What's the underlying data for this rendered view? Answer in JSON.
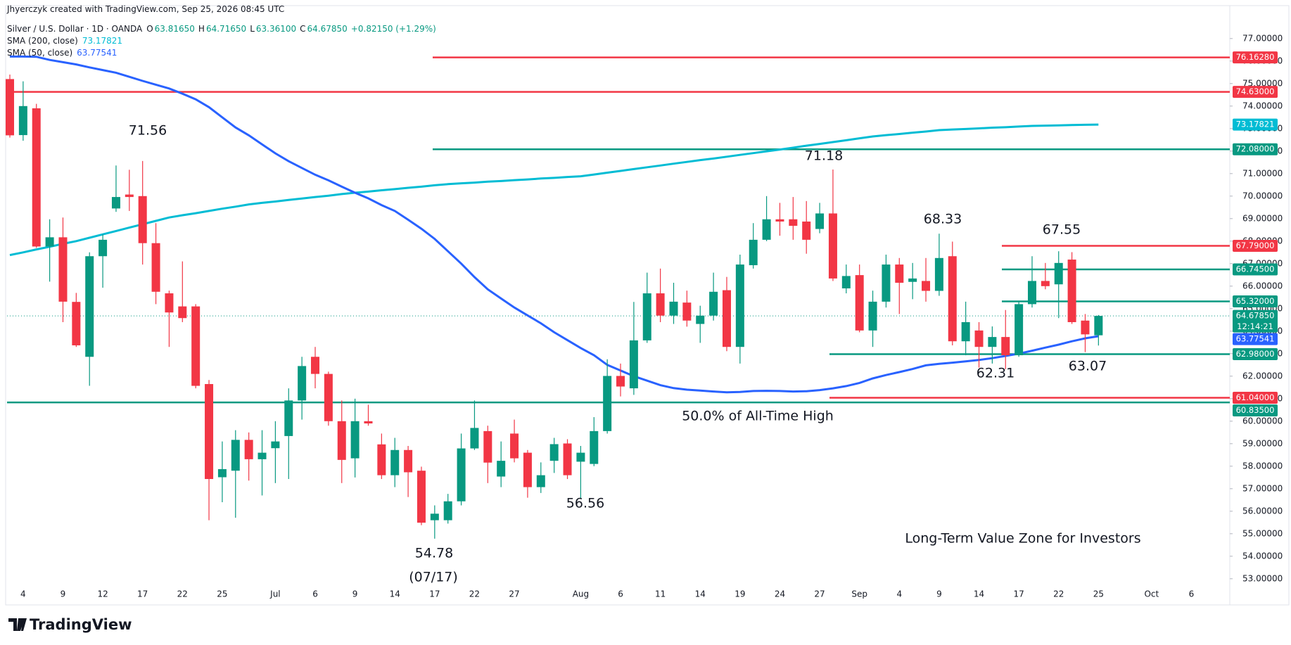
{
  "header": {
    "credit": "Jhyerczyk created with TradingView.com, Sep 25, 2026 08:45 UTC",
    "brand": "TradingView"
  },
  "chart_data": {
    "type": "candlestick",
    "title": "Silver / U.S. Dollar · 1D · OANDA",
    "ohlc_legend": [
      {
        "key": "O",
        "label": "63.81650"
      },
      {
        "key": "H",
        "label": "64.71650"
      },
      {
        "key": "L",
        "label": "63.36100"
      },
      {
        "key": "C",
        "label": "64.67850"
      }
    ],
    "change": "+0.82150 (+1.29%)",
    "categories": [
      null,
      "4",
      null,
      null,
      "9",
      null,
      null,
      "12",
      null,
      null,
      "17",
      null,
      null,
      "22",
      null,
      null,
      "25",
      null,
      null,
      null,
      "Jul",
      null,
      null,
      "6",
      null,
      null,
      "9",
      null,
      null,
      "14",
      null,
      null,
      "17",
      null,
      null,
      "22",
      null,
      null,
      "27",
      null,
      null,
      null,
      null,
      "Aug",
      null,
      null,
      "6",
      null,
      null,
      "11",
      null,
      null,
      "14",
      null,
      null,
      "19",
      null,
      null,
      "24",
      null,
      null,
      "27",
      null,
      null,
      "Sep",
      null,
      null,
      "4",
      null,
      null,
      "9",
      null,
      null,
      "14",
      null,
      null,
      "17",
      null,
      null,
      "22",
      null,
      null,
      "25",
      null,
      null,
      null,
      "Oct",
      null,
      null,
      "6",
      null,
      null
    ],
    "open": [
      75.2,
      72.71,
      73.9,
      67.76,
      68.17,
      65.3,
      62.86,
      67.33,
      69.45,
      70.07,
      70.0,
      67.91,
      65.68,
      65.1,
      65.1,
      61.65,
      57.51,
      57.8,
      59.17,
      58.31,
      58.8,
      59.34,
      60.92,
      62.86,
      62.1,
      60.0,
      58.35,
      60.0,
      58.97,
      57.6,
      58.72,
      57.8,
      55.6,
      55.6,
      56.44,
      58.79,
      59.56,
      57.54,
      59.45,
      58.6,
      57.07,
      58.24,
      59.01,
      58.2,
      58.1,
      59.56,
      62.01,
      61.46,
      63.59,
      65.68,
      64.69,
      65.27,
      64.32,
      64.69,
      65.82,
      63.3,
      66.93,
      68.06,
      68.97,
      68.97,
      68.87,
      68.54,
      69.23,
      65.9,
      66.49,
      64.03,
      65.31,
      66.96,
      66.19,
      66.23,
      65.79,
      67.33,
      63.55,
      64.03,
      63.3,
      63.74,
      62.93,
      65.2,
      66.23,
      66.08,
      67.18,
      64.47,
      63.8165,
      null,
      null,
      null,
      null,
      null,
      null,
      null,
      null,
      null
    ],
    "high": [
      75.4,
      75.1,
      74.1,
      68.97,
      69.05,
      65.7,
      67.5,
      68.3,
      71.36,
      71.17,
      71.56,
      68.8,
      65.8,
      67.1,
      65.2,
      61.83,
      59.1,
      59.6,
      59.5,
      59.6,
      60.0,
      61.46,
      62.86,
      63.3,
      62.2,
      60.92,
      61.0,
      60.73,
      59.45,
      59.26,
      58.9,
      57.98,
      56.26,
      56.77,
      59.45,
      60.92,
      59.8,
      59.1,
      60.07,
      58.72,
      58.17,
      59.26,
      59.2,
      58.9,
      60.18,
      62.75,
      62.56,
      65.3,
      66.6,
      66.78,
      66.15,
      65.8,
      65.13,
      66.6,
      66.41,
      67.4,
      68.8,
      70.0,
      69.7,
      69.96,
      69.78,
      69.7,
      71.18,
      66.96,
      66.96,
      65.8,
      67.4,
      67.25,
      67.03,
      67.25,
      68.33,
      67.98,
      65.31,
      64.4,
      64.21,
      64.94,
      65.31,
      67.33,
      67.03,
      67.55,
      67.51,
      64.76,
      64.7165,
      null,
      null,
      null,
      null,
      null,
      null,
      null,
      null,
      null
    ],
    "low": [
      72.6,
      72.46,
      67.7,
      66.2,
      64.4,
      63.3,
      61.57,
      65.93,
      69.3,
      69.34,
      66.96,
      65.2,
      63.3,
      64.4,
      61.46,
      55.6,
      56.4,
      55.71,
      57.36,
      56.7,
      57.25,
      57.43,
      60.07,
      61.46,
      59.8,
      57.25,
      57.5,
      59.8,
      57.43,
      57.07,
      56.63,
      55.38,
      54.78,
      55.45,
      56.26,
      58.72,
      57.25,
      57.07,
      58.17,
      56.6,
      56.81,
      57.7,
      57.43,
      56.56,
      58.0,
      59.45,
      61.1,
      61.17,
      63.48,
      64.4,
      64.32,
      64.2,
      63.48,
      64.47,
      63.11,
      62.56,
      66.78,
      68.0,
      68.24,
      68.06,
      67.44,
      68.35,
      66.23,
      65.68,
      63.95,
      63.3,
      65.05,
      64.76,
      65.42,
      65.31,
      65.57,
      63.37,
      62.93,
      62.38,
      62.56,
      62.31,
      62.86,
      65.05,
      65.86,
      64.58,
      64.32,
      63.07,
      63.361,
      null,
      null,
      null,
      null,
      null,
      null,
      null,
      null,
      null
    ],
    "close": [
      72.7,
      74.0,
      67.76,
      68.17,
      65.31,
      63.37,
      67.33,
      68.06,
      69.96,
      69.96,
      67.91,
      65.75,
      64.83,
      64.58,
      61.57,
      57.43,
      57.87,
      59.17,
      58.31,
      58.6,
      59.1,
      60.92,
      62.45,
      62.1,
      60.0,
      58.28,
      60.0,
      59.9,
      57.6,
      58.72,
      57.73,
      55.49,
      55.89,
      56.44,
      58.79,
      59.7,
      58.16,
      58.24,
      58.35,
      57.07,
      57.6,
      58.98,
      57.6,
      58.6,
      59.56,
      62.01,
      61.54,
      63.59,
      65.68,
      64.69,
      65.31,
      64.47,
      64.69,
      65.75,
      63.3,
      66.96,
      68.06,
      68.97,
      68.87,
      68.68,
      68.06,
      69.23,
      66.34,
      66.45,
      64.03,
      65.31,
      66.96,
      66.15,
      66.34,
      65.79,
      67.25,
      63.55,
      64.4,
      63.3,
      63.74,
      62.93,
      65.2,
      66.23,
      66.0,
      67.03,
      64.4,
      63.857,
      64.6785,
      null,
      null,
      null,
      null,
      null,
      null,
      null,
      null,
      null
    ],
    "up_color": "#089981",
    "down_color": "#f23645",
    "last_price_label": "64.67850",
    "countdown": "12:14:21",
    "series": [
      {
        "name": "SMA (200, close)",
        "color": "#00bcd4",
        "values": [
          67.38,
          67.5,
          67.63,
          67.75,
          67.88,
          68.0,
          68.15,
          68.3,
          68.45,
          68.6,
          68.75,
          68.9,
          69.05,
          69.15,
          69.24,
          69.34,
          69.44,
          69.53,
          69.63,
          69.7,
          69.76,
          69.83,
          69.89,
          69.96,
          70.02,
          70.09,
          70.15,
          70.2,
          70.26,
          70.31,
          70.37,
          70.42,
          70.48,
          70.53,
          70.57,
          70.6,
          70.64,
          70.67,
          70.71,
          70.74,
          70.78,
          70.81,
          70.85,
          70.88,
          70.96,
          71.04,
          71.12,
          71.2,
          71.28,
          71.36,
          71.44,
          71.52,
          71.6,
          71.67,
          71.75,
          71.83,
          71.91,
          71.99,
          72.07,
          72.15,
          72.24,
          72.32,
          72.4,
          72.48,
          72.57,
          72.65,
          72.71,
          72.76,
          72.82,
          72.87,
          72.93,
          72.96,
          72.98,
          73.01,
          73.04,
          73.06,
          73.09,
          73.12,
          73.13,
          73.14,
          73.16,
          73.17,
          73.17821,
          null,
          null,
          null,
          null,
          null,
          null,
          null,
          null,
          null
        ]
      },
      {
        "name": "SMA (50, close)",
        "color": "#2962ff",
        "values": [
          76.2,
          76.2,
          76.19,
          76.05,
          75.95,
          75.85,
          75.72,
          75.6,
          75.48,
          75.3,
          75.12,
          74.95,
          74.78,
          74.55,
          74.3,
          73.95,
          73.5,
          73.05,
          72.7,
          72.3,
          71.9,
          71.55,
          71.25,
          70.95,
          70.7,
          70.42,
          70.15,
          69.9,
          69.6,
          69.34,
          68.95,
          68.55,
          68.1,
          67.55,
          67.0,
          66.4,
          65.86,
          65.45,
          65.05,
          64.7,
          64.35,
          63.95,
          63.6,
          63.25,
          62.93,
          62.5,
          62.25,
          62.0,
          61.8,
          61.6,
          61.47,
          61.4,
          61.36,
          61.32,
          61.28,
          61.3,
          61.34,
          61.35,
          61.34,
          61.32,
          61.33,
          61.38,
          61.46,
          61.56,
          61.7,
          61.9,
          62.05,
          62.18,
          62.32,
          62.48,
          62.55,
          62.6,
          62.66,
          62.72,
          62.8,
          62.9,
          63.0,
          63.13,
          63.27,
          63.4,
          63.55,
          63.68,
          63.77541,
          null,
          null,
          null,
          null,
          null,
          null,
          null,
          null,
          null
        ]
      }
    ],
    "levels": [
      {
        "value": 76.1628,
        "label": "76.16280",
        "color": "#f23645"
      },
      {
        "value": 74.63,
        "label": "74.63000",
        "color": "#f23645"
      },
      {
        "value": 72.08,
        "label": "72.08000",
        "color": "#089981"
      },
      {
        "value": 67.79,
        "label": "67.79000",
        "color": "#f23645"
      },
      {
        "value": 66.745,
        "label": "66.74500",
        "color": "#089981"
      },
      {
        "value": 65.32,
        "label": "65.32000",
        "color": "#089981"
      },
      {
        "value": 62.98,
        "label": "62.98000",
        "color": "#089981"
      },
      {
        "value": 61.04,
        "label": "61.04000",
        "color": "#f23645"
      },
      {
        "value": 60.835,
        "label": "60.83500",
        "color": "#089981"
      }
    ],
    "annotations": [
      "71.56",
      "71.18",
      "68.33",
      "67.55",
      "62.31",
      "63.07",
      "56.56",
      "54.78",
      "(07/17)",
      "50.0% of All-Time High",
      "Long-Term Value Zone for Investors"
    ],
    "ylim": [
      51.9,
      78.4
    ],
    "yticks": [
      {
        "value": 53,
        "label": "53.00000"
      },
      {
        "value": 54,
        "label": "54.00000"
      },
      {
        "value": 55,
        "label": "55.00000"
      },
      {
        "value": 56,
        "label": "56.00000"
      },
      {
        "value": 57,
        "label": "57.00000"
      },
      {
        "value": 58,
        "label": "58.00000"
      },
      {
        "value": 59,
        "label": "59.00000"
      },
      {
        "value": 60,
        "label": "60.00000"
      },
      {
        "value": 61,
        "label": "61.00000"
      },
      {
        "value": 62,
        "label": "62.00000"
      },
      {
        "value": 63,
        "label": "63.00000"
      },
      {
        "value": 64,
        "label": "64.00000"
      },
      {
        "value": 65,
        "label": "65.00000"
      },
      {
        "value": 66,
        "label": "66.00000"
      },
      {
        "value": 67,
        "label": "67.00000"
      },
      {
        "value": 68,
        "label": "68.00000"
      },
      {
        "value": 69,
        "label": "69.00000"
      },
      {
        "value": 70,
        "label": "70.00000"
      },
      {
        "value": 71,
        "label": "71.00000"
      },
      {
        "value": 72,
        "label": "72.00000"
      },
      {
        "value": 73,
        "label": "73.00000"
      },
      {
        "value": 74,
        "label": "74.00000"
      },
      {
        "value": 75,
        "label": "75.00000"
      },
      {
        "value": 76,
        "label": "76.00000"
      },
      {
        "value": 77,
        "label": "77.00000"
      }
    ]
  }
}
